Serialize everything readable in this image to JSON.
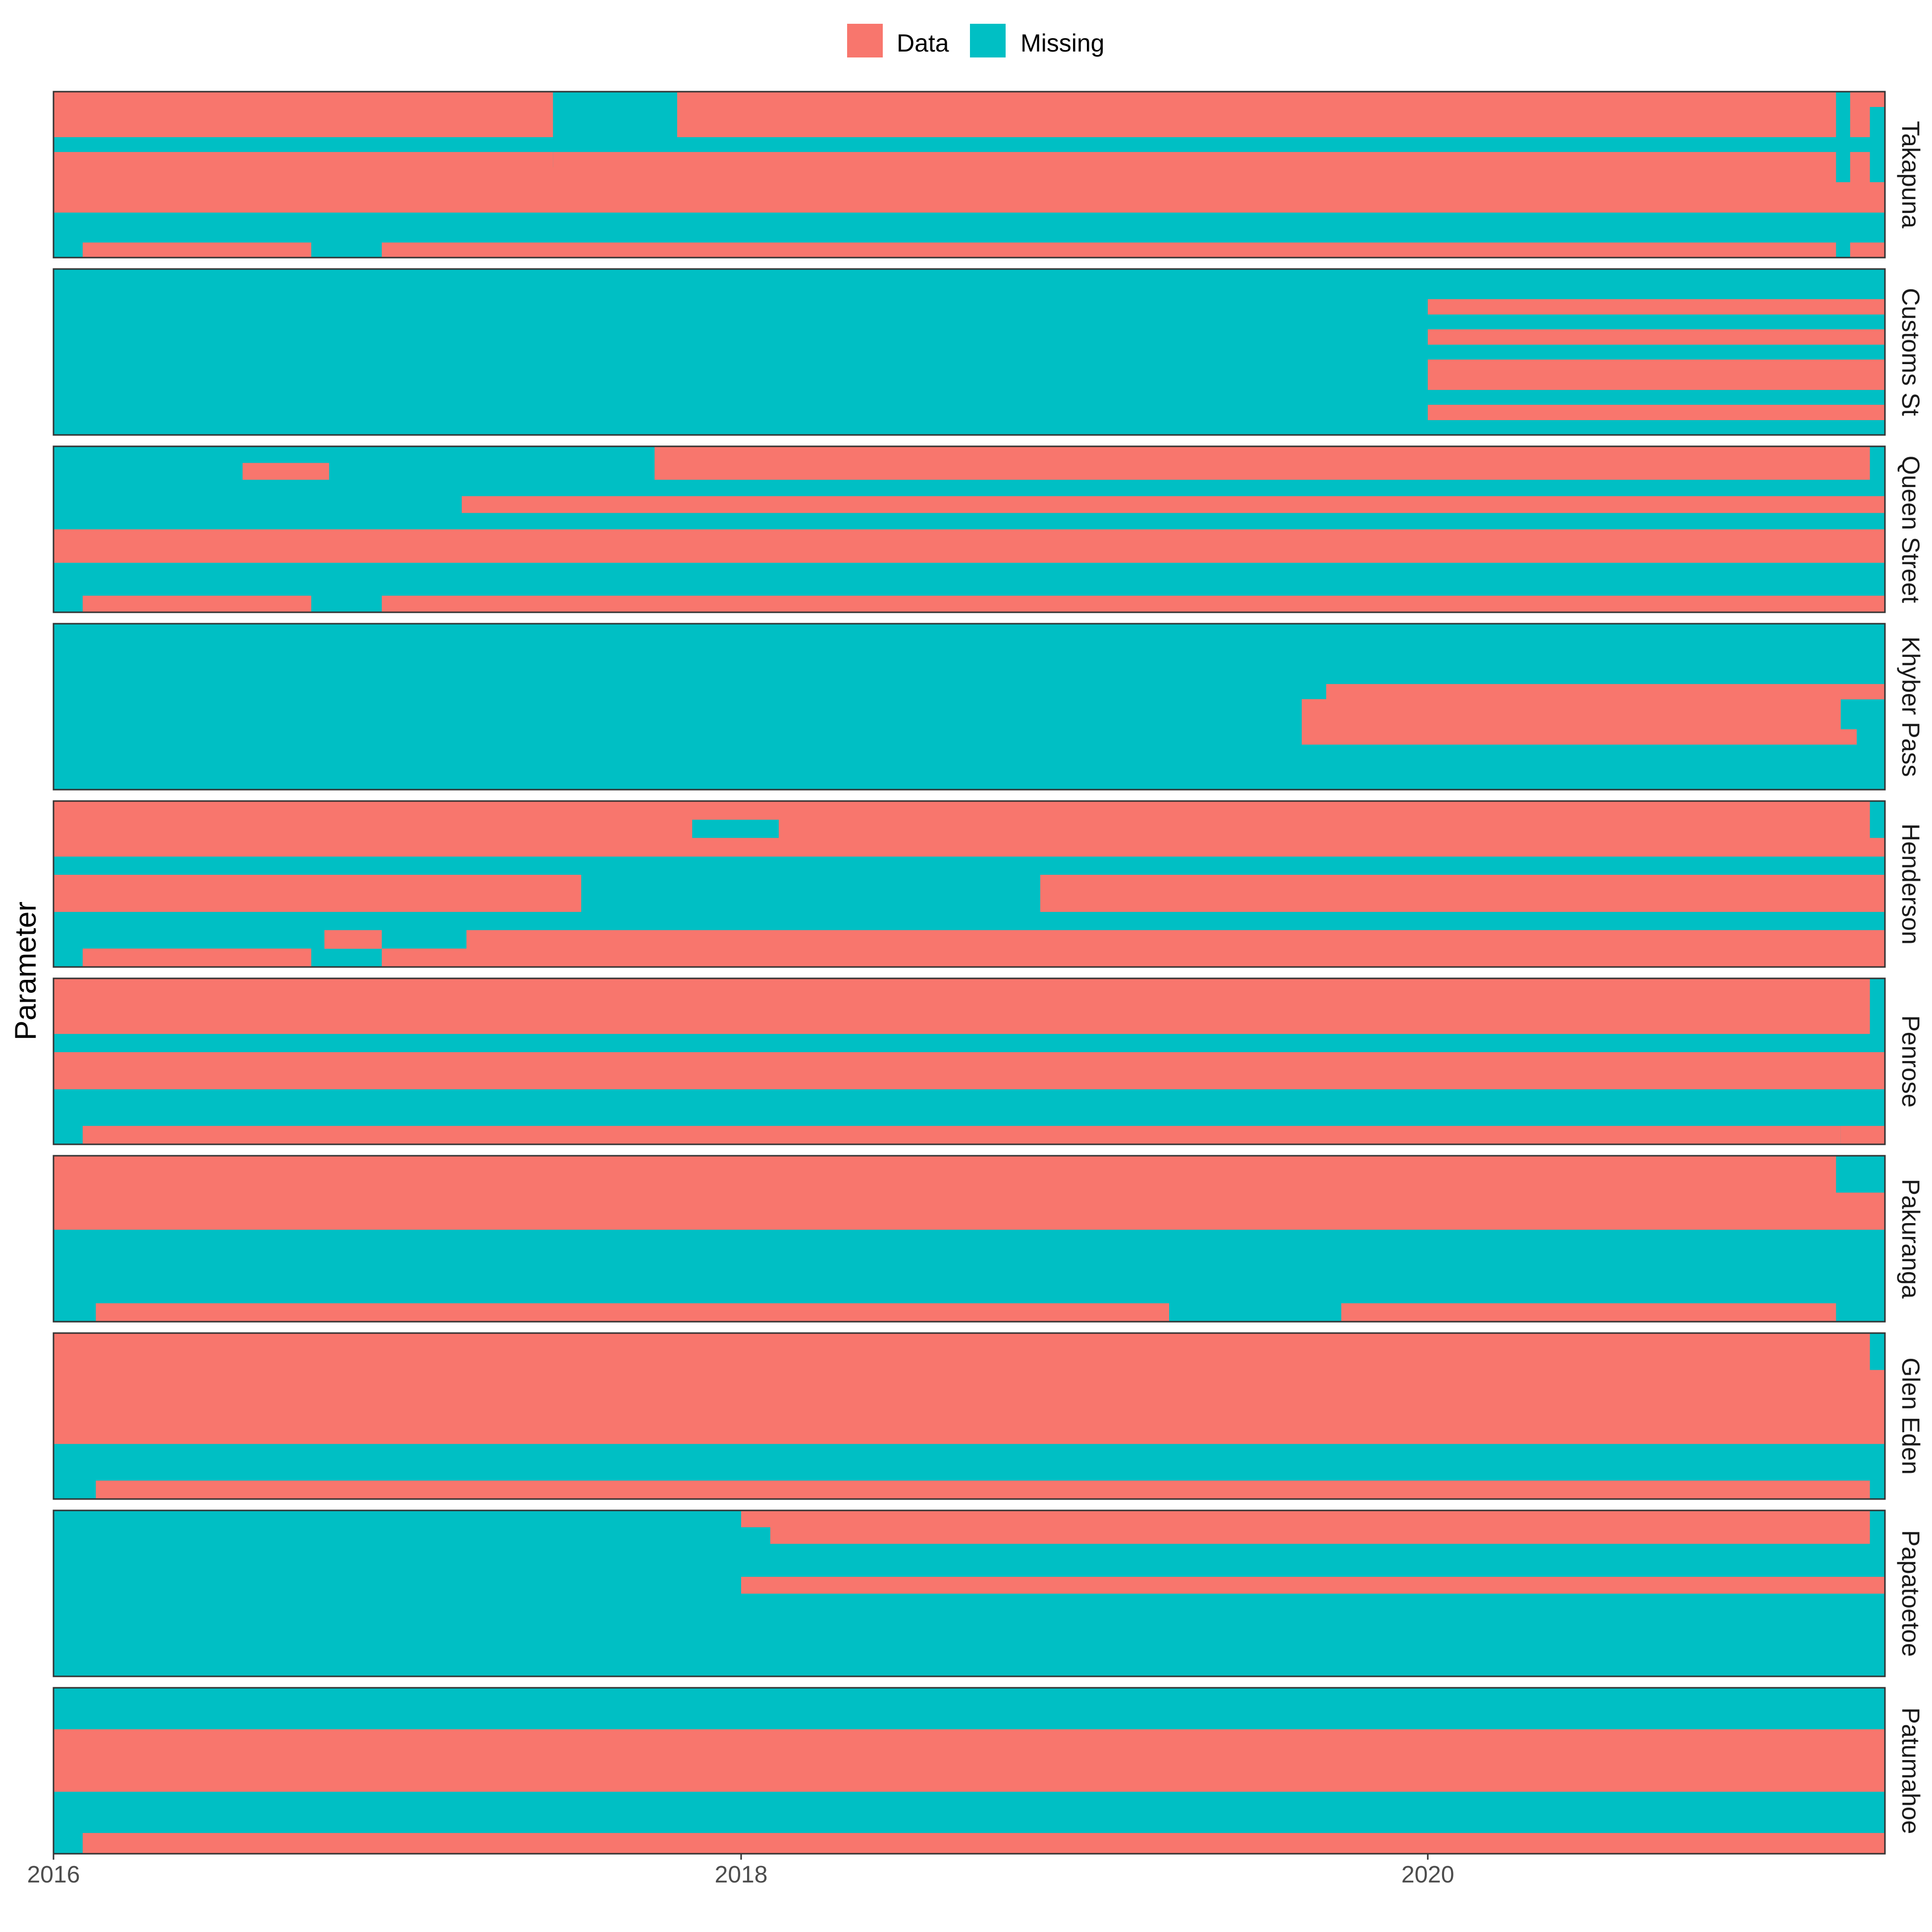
{
  "chart_data": {
    "type": "heatmap",
    "ylabel": "Parameter",
    "xlabel": "",
    "x_axis": {
      "type": "date",
      "range": [
        "2016-01-01",
        "2021-05-01"
      ],
      "ticks": [
        {
          "value": "2016-01-01",
          "label": "2016"
        },
        {
          "value": "2018-01-01",
          "label": "2018"
        },
        {
          "value": "2020-01-01",
          "label": "2020"
        }
      ]
    },
    "legend": {
      "position": "top",
      "entries": [
        {
          "label": "Data",
          "color": "#F8766D"
        },
        {
          "label": "Missing",
          "color": "#00BFC4"
        }
      ]
    },
    "colors": {
      "data": "#F8766D",
      "missing": "#00BFC4",
      "border": "#333333"
    },
    "grid": false,
    "facets": [
      {
        "site": "Takapuna",
        "rows": [
          {
            "data": [
              [
                "2016-01-01",
                "2017-06-15"
              ],
              [
                "2017-10-25",
                "2021-03-10"
              ],
              [
                "2021-03-25",
                "2021-05-01"
              ]
            ]
          },
          {
            "data": [
              [
                "2016-01-01",
                "2017-06-15"
              ],
              [
                "2017-10-25",
                "2021-03-10"
              ],
              [
                "2021-03-25",
                "2021-04-15"
              ]
            ]
          },
          {
            "data": [
              [
                "2016-01-01",
                "2017-06-15"
              ],
              [
                "2017-10-25",
                "2021-03-10"
              ],
              [
                "2021-03-25",
                "2021-04-15"
              ]
            ]
          },
          {
            "data": []
          },
          {
            "data": [
              [
                "2016-01-01",
                "2017-06-15"
              ],
              [
                "2017-06-15",
                "2021-03-10"
              ],
              [
                "2021-03-25",
                "2021-04-15"
              ]
            ]
          },
          {
            "data": [
              [
                "2016-01-01",
                "2021-03-10"
              ],
              [
                "2021-03-25",
                "2021-04-15"
              ]
            ]
          },
          {
            "data": [
              [
                "2016-01-01",
                "2021-05-01"
              ]
            ]
          },
          {
            "data": [
              [
                "2016-01-01",
                "2021-05-01"
              ]
            ]
          },
          {
            "data": []
          },
          {
            "data": []
          },
          {
            "data": [
              [
                "2016-02-01",
                "2016-10-01"
              ],
              [
                "2016-12-15",
                "2021-03-10"
              ],
              [
                "2021-03-25",
                "2021-05-01"
              ]
            ]
          }
        ]
      },
      {
        "site": "Customs St",
        "rows": [
          {
            "data": []
          },
          {
            "data": []
          },
          {
            "data": [
              [
                "2020-01-01",
                "2021-05-01"
              ]
            ]
          },
          {
            "data": []
          },
          {
            "data": [
              [
                "2020-01-01",
                "2021-05-01"
              ]
            ]
          },
          {
            "data": []
          },
          {
            "data": [
              [
                "2020-01-01",
                "2021-05-01"
              ]
            ]
          },
          {
            "data": [
              [
                "2020-01-01",
                "2021-05-01"
              ]
            ]
          },
          {
            "data": []
          },
          {
            "data": [
              [
                "2020-01-01",
                "2021-05-01"
              ]
            ]
          },
          {
            "data": []
          }
        ]
      },
      {
        "site": "Queen Street",
        "rows": [
          {
            "data": [
              [
                "2017-10-01",
                "2021-04-15"
              ]
            ]
          },
          {
            "data": [
              [
                "2016-07-20",
                "2016-10-20"
              ],
              [
                "2017-10-01",
                "2021-04-15"
              ]
            ]
          },
          {
            "data": []
          },
          {
            "data": [
              [
                "2017-03-10",
                "2021-05-01"
              ]
            ]
          },
          {
            "data": []
          },
          {
            "data": [
              [
                "2016-01-01",
                "2021-05-01"
              ]
            ]
          },
          {
            "data": [
              [
                "2016-01-01",
                "2021-05-01"
              ]
            ]
          },
          {
            "data": []
          },
          {
            "data": []
          },
          {
            "data": [
              [
                "2016-02-01",
                "2016-10-01"
              ],
              [
                "2016-12-15",
                "2021-05-01"
              ]
            ]
          }
        ]
      },
      {
        "site": "Khyber Pass",
        "rows": [
          {
            "data": []
          },
          {
            "data": []
          },
          {
            "data": []
          },
          {
            "data": []
          },
          {
            "data": [
              [
                "2019-09-15",
                "2021-05-01"
              ]
            ]
          },
          {
            "data": [
              [
                "2019-08-20",
                "2021-03-15"
              ]
            ]
          },
          {
            "data": [
              [
                "2019-08-20",
                "2021-03-15"
              ]
            ]
          },
          {
            "data": [
              [
                "2019-08-20",
                "2021-04-01"
              ]
            ]
          },
          {
            "data": []
          },
          {
            "data": []
          },
          {
            "data": []
          }
        ]
      },
      {
        "site": "Henderson",
        "rows": [
          {
            "data": [
              [
                "2016-01-01",
                "2021-04-15"
              ]
            ]
          },
          {
            "data": [
              [
                "2016-01-01",
                "2017-11-10"
              ],
              [
                "2018-02-10",
                "2021-04-15"
              ]
            ]
          },
          {
            "data": [
              [
                "2016-01-01",
                "2021-05-01"
              ]
            ]
          },
          {
            "data": []
          },
          {
            "data": [
              [
                "2016-01-01",
                "2017-07-15"
              ],
              [
                "2018-11-15",
                "2021-05-01"
              ]
            ]
          },
          {
            "data": [
              [
                "2016-01-01",
                "2017-07-15"
              ],
              [
                "2018-11-15",
                "2021-05-01"
              ]
            ]
          },
          {
            "data": []
          },
          {
            "data": [
              [
                "2016-10-15",
                "2016-12-15"
              ],
              [
                "2017-03-15",
                "2021-05-01"
              ]
            ]
          },
          {
            "data": [
              [
                "2016-02-01",
                "2016-10-01"
              ],
              [
                "2016-12-15",
                "2021-05-01"
              ]
            ]
          }
        ]
      },
      {
        "site": "Penrose",
        "rows": [
          {
            "data": [
              [
                "2016-01-01",
                "2021-04-15"
              ]
            ]
          },
          {
            "data": [
              [
                "2016-01-01",
                "2021-04-15"
              ]
            ]
          },
          {
            "data": [
              [
                "2016-01-01",
                "2021-04-15"
              ]
            ]
          },
          {
            "data": []
          },
          {
            "data": [
              [
                "2016-01-01",
                "2021-05-01"
              ]
            ]
          },
          {
            "data": [
              [
                "2016-01-01",
                "2021-05-01"
              ]
            ]
          },
          {
            "data": []
          },
          {
            "data": []
          },
          {
            "data": [
              [
                "2016-02-01",
                "2021-03-15"
              ],
              [
                "2021-03-15",
                "2021-05-01"
              ]
            ]
          }
        ]
      },
      {
        "site": "Pakuranga",
        "rows": [
          {
            "data": [
              [
                "2016-01-01",
                "2021-03-10"
              ]
            ]
          },
          {
            "data": [
              [
                "2016-01-01",
                "2021-03-10"
              ]
            ]
          },
          {
            "data": [
              [
                "2016-01-01",
                "2021-05-01"
              ]
            ]
          },
          {
            "data": [
              [
                "2016-01-01",
                "2021-05-01"
              ]
            ]
          },
          {
            "data": []
          },
          {
            "data": []
          },
          {
            "data": []
          },
          {
            "data": []
          },
          {
            "data": [
              [
                "2016-02-15",
                "2019-04-01"
              ],
              [
                "2019-10-01",
                "2021-03-10"
              ]
            ]
          }
        ]
      },
      {
        "site": "Glen Eden",
        "rows": [
          {
            "data": [
              [
                "2016-01-01",
                "2021-04-15"
              ]
            ]
          },
          {
            "data": [
              [
                "2016-01-01",
                "2021-04-15"
              ]
            ]
          },
          {
            "data": [
              [
                "2016-01-01",
                "2021-05-01"
              ]
            ]
          },
          {
            "data": [
              [
                "2016-01-01",
                "2021-05-01"
              ]
            ]
          },
          {
            "data": [
              [
                "2016-01-01",
                "2021-05-01"
              ]
            ]
          },
          {
            "data": [
              [
                "2016-01-01",
                "2021-05-01"
              ]
            ]
          },
          {
            "data": []
          },
          {
            "data": []
          },
          {
            "data": [
              [
                "2016-02-15",
                "2021-04-15"
              ]
            ]
          }
        ]
      },
      {
        "site": "Papatoetoe",
        "rows": [
          {
            "data": [
              [
                "2018-01-01",
                "2021-04-15"
              ]
            ]
          },
          {
            "data": [
              [
                "2018-02-01",
                "2021-04-15"
              ]
            ]
          },
          {
            "data": []
          },
          {
            "data": []
          },
          {
            "data": [
              [
                "2018-01-01",
                "2021-05-01"
              ]
            ]
          },
          {
            "data": []
          },
          {
            "data": []
          },
          {
            "data": []
          },
          {
            "data": []
          },
          {
            "data": []
          }
        ]
      },
      {
        "site": "Patumahoe",
        "rows": [
          {
            "data": []
          },
          {
            "data": []
          },
          {
            "data": [
              [
                "2016-01-01",
                "2021-05-01"
              ]
            ]
          },
          {
            "data": [
              [
                "2016-01-01",
                "2021-05-01"
              ]
            ]
          },
          {
            "data": [
              [
                "2016-01-01",
                "2021-05-01"
              ]
            ]
          },
          {
            "data": []
          },
          {
            "data": []
          },
          {
            "data": [
              [
                "2016-02-01",
                "2021-05-01"
              ]
            ]
          }
        ]
      }
    ]
  }
}
